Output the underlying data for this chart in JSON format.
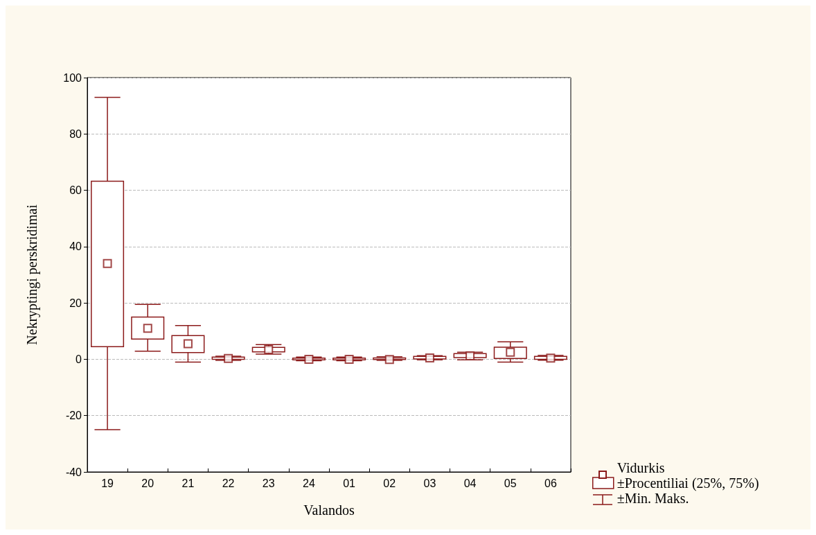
{
  "chart_data": {
    "type": "box",
    "xlabel": "Valandos",
    "ylabel": "Nekryptingi perskridimai",
    "categories": [
      "19",
      "20",
      "21",
      "22",
      "23",
      "24",
      "01",
      "02",
      "03",
      "04",
      "05",
      "06"
    ],
    "ylim": [
      -40,
      100
    ],
    "yticks": [
      -40,
      -20,
      0,
      20,
      40,
      60,
      80,
      100
    ],
    "grid": "y",
    "legend": "bottom right",
    "marker": "square",
    "annotations": [
      "Vidurkis",
      "±Min. Maks."
    ],
    "series": [
      {
        "name": "±Procentiliai (25%, 75%)",
        "color": "#8b1a1a",
        "boxes": [
          {
            "low": -25,
            "q1": 4.5,
            "q3": 63.2,
            "high": 93,
            "mean": 34
          },
          {
            "low": 2.9,
            "q1": 7.2,
            "q3": 15,
            "high": 19.5,
            "mean": 11
          },
          {
            "low": -1,
            "q1": 2.4,
            "q3": 8.4,
            "high": 12,
            "mean": 5.5
          },
          {
            "low": -0.4,
            "q1": 0,
            "q3": 0.8,
            "high": 1.1,
            "mean": 0.3
          },
          {
            "low": 1.8,
            "q1": 2.6,
            "q3": 4.2,
            "high": 5.2,
            "mean": 3.4
          },
          {
            "low": -0.5,
            "q1": -0.2,
            "q3": 0.4,
            "high": 0.8,
            "mean": 0
          },
          {
            "low": -0.5,
            "q1": -0.2,
            "q3": 0.4,
            "high": 0.8,
            "mean": 0
          },
          {
            "low": -0.4,
            "q1": -0.1,
            "q3": 0.5,
            "high": 0.9,
            "mean": -0.1
          },
          {
            "low": -0.2,
            "q1": 0.1,
            "q3": 1,
            "high": 1.3,
            "mean": 0.5
          },
          {
            "low": -0.2,
            "q1": 0.6,
            "q3": 2,
            "high": 2.5,
            "mean": 1.2
          },
          {
            "low": -1,
            "q1": 0.3,
            "q3": 4.3,
            "high": 6.2,
            "mean": 2.5
          },
          {
            "low": -0.3,
            "q1": 0,
            "q3": 1,
            "high": 1.4,
            "mean": 0.4
          }
        ]
      }
    ]
  }
}
